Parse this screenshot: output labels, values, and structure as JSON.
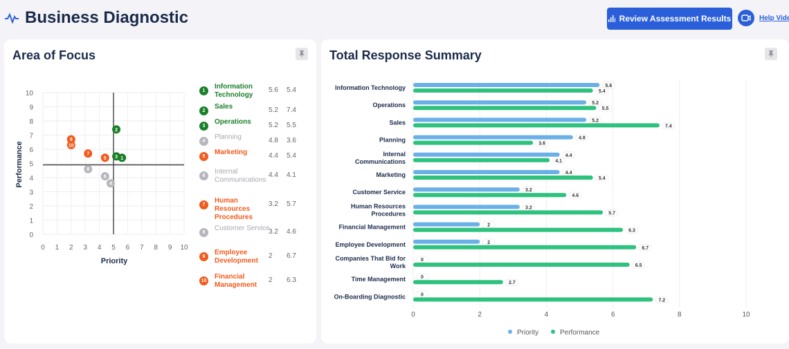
{
  "header": {
    "title": "Business Diagnostic",
    "review_button": "Review Assessment Results",
    "help_link": "Help Video"
  },
  "colors": {
    "green": "#1a7f2a",
    "orange": "#f25a1c",
    "gray": "#b6b6bd",
    "priority": "#6ab0e6",
    "performance": "#2ec27e",
    "accent": "#2a5fd9"
  },
  "focus": {
    "title": "Area of Focus",
    "xlabel": "Priority",
    "ylabel": "Performance",
    "xlim": [
      0,
      10
    ],
    "ylim": [
      0,
      10
    ],
    "items": [
      {
        "n": "1",
        "name": "Information Technology",
        "priority": 5.6,
        "performance": 5.4,
        "status": "green"
      },
      {
        "n": "2",
        "name": "Sales",
        "priority": 5.2,
        "performance": 7.4,
        "status": "green"
      },
      {
        "n": "3",
        "name": "Operations",
        "priority": 5.2,
        "performance": 5.5,
        "status": "green"
      },
      {
        "n": "4",
        "name": "Planning",
        "priority": 4.8,
        "performance": 3.6,
        "status": "gray"
      },
      {
        "n": "5",
        "name": "Marketing",
        "priority": 4.4,
        "performance": 5.4,
        "status": "orange"
      },
      {
        "n": "6",
        "name": "Internal Communications",
        "priority": 4.4,
        "performance": 4.1,
        "status": "gray"
      },
      {
        "n": "7",
        "name": "Human Resources Procedures",
        "priority": 3.2,
        "performance": 5.7,
        "status": "orange"
      },
      {
        "n": "8",
        "name": "Customer Service",
        "priority": 3.2,
        "performance": 4.6,
        "status": "gray"
      },
      {
        "n": "9",
        "name": "Employee Development",
        "priority": 2,
        "performance": 6.7,
        "status": "orange"
      },
      {
        "n": "10",
        "name": "Financial Management",
        "priority": 2,
        "performance": 6.3,
        "status": "orange"
      }
    ]
  },
  "chart_data": {
    "type": "bar",
    "orientation": "horizontal",
    "title": "Total Response Summary",
    "xlim": [
      0,
      10
    ],
    "grid": true,
    "legend": "bottom",
    "categories": [
      "Information Technology",
      "Operations",
      "Sales",
      "Planning",
      "Internal Communications",
      "Marketing",
      "Customer Service",
      "Human Resources Procedures",
      "Financial Management",
      "Employee Development",
      "Companies That Bid for Work",
      "Time Management",
      "On-Boarding Diagnostic"
    ],
    "series": [
      {
        "name": "Priority",
        "values": [
          5.6,
          5.2,
          5.2,
          4.8,
          4.4,
          4.4,
          3.2,
          3.2,
          2,
          2,
          0,
          0,
          0
        ]
      },
      {
        "name": "Performance",
        "values": [
          5.4,
          5.5,
          7.4,
          3.6,
          4.1,
          5.4,
          4.6,
          5.7,
          6.3,
          6.7,
          6.5,
          2.7,
          7.2
        ]
      }
    ]
  }
}
